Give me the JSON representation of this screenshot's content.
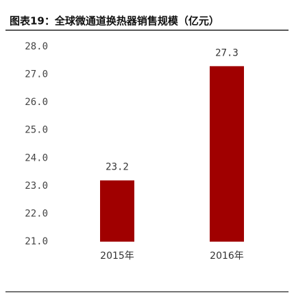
{
  "chart_data": {
    "type": "bar",
    "title": "图表19：全球微通道换热器销售规模（亿元）",
    "categories": [
      "2015年",
      "2016年"
    ],
    "values": [
      23.2,
      27.3
    ],
    "color": "#a00000",
    "ylim": [
      21.0,
      28.0
    ],
    "yticks": [
      {
        "value": 21,
        "label": "21.0"
      },
      {
        "value": 22,
        "label": "22.0"
      },
      {
        "value": 23,
        "label": "23.0"
      },
      {
        "value": 24,
        "label": "24.0"
      },
      {
        "value": 25,
        "label": "25.0"
      },
      {
        "value": 26,
        "label": "26.0"
      },
      {
        "value": 27,
        "label": "27.0"
      },
      {
        "value": 28,
        "label": "28.0"
      }
    ],
    "grid": false
  }
}
